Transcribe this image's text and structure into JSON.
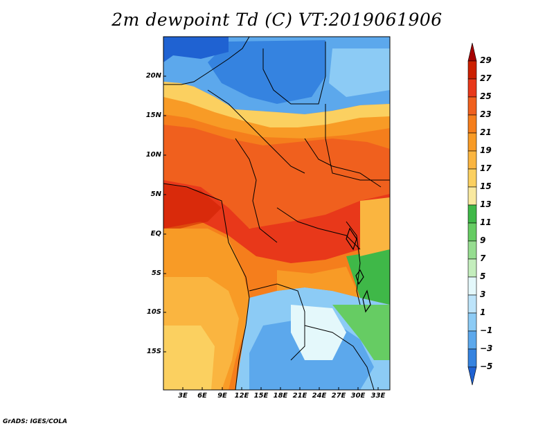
{
  "title": "2m dewpoint Td (C) VT:2019061906",
  "credit": "GrADS: IGES/COLA",
  "map": {
    "variable": "2m dewpoint",
    "units": "C",
    "valid_time": "2019061906",
    "lat_labels": [
      "20N",
      "15N",
      "10N",
      "5N",
      "EQ",
      "5S",
      "10S",
      "15S"
    ],
    "lon_labels": [
      "3E",
      "6E",
      "9E",
      "12E",
      "15E",
      "18E",
      "21E",
      "24E",
      "27E",
      "30E",
      "33E"
    ]
  },
  "colorbar": {
    "labels": [
      "29",
      "27",
      "25",
      "23",
      "21",
      "19",
      "17",
      "15",
      "13",
      "11",
      "9",
      "7",
      "5",
      "3",
      "1",
      "−1",
      "−3",
      "−5"
    ],
    "colors": [
      "#a50000",
      "#cc1f00",
      "#e8381a",
      "#f0601e",
      "#f57e1c",
      "#f89b26",
      "#fab540",
      "#fbd060",
      "#f9e9a0",
      "#3fb848",
      "#66cc63",
      "#96dd90",
      "#c4eebd",
      "#e4f8fb",
      "#bde4fa",
      "#8ccbf5",
      "#5ca8ec",
      "#3583e0",
      "#1f62d2"
    ]
  }
}
